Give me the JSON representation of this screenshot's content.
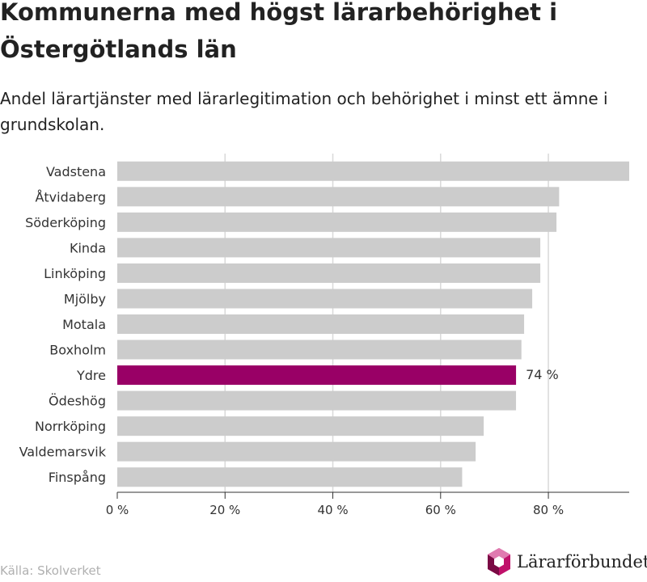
{
  "header": {
    "title": "Kommunerna med högst lärarbehörighet i Östergötlands län",
    "subtitle": "Andel lärartjänster med lärarlegitimation och behörighet i minst ett ämne i grundskolan."
  },
  "footer": {
    "source": "Källa: Skolverket",
    "logo_text": "Lärarförbundet",
    "logo_icon": "lararforbundet-logo-icon"
  },
  "colors": {
    "default_bar": "#cccccc",
    "highlight_bar": "#990066",
    "grid": "#d9d9d9",
    "axis": "#333333",
    "logo_magenta": "#c0106a",
    "logo_dark": "#7a0a44",
    "logo_light": "#e07ab0"
  },
  "chart_data": {
    "type": "bar",
    "orientation": "horizontal",
    "categories": [
      "Vadstena",
      "Åtvidaberg",
      "Söderköping",
      "Kinda",
      "Linköping",
      "Mjölby",
      "Motala",
      "Boxholm",
      "Ydre",
      "Ödeshög",
      "Norrköping",
      "Valdemarsvik",
      "Finspång"
    ],
    "values": [
      95,
      82,
      81.5,
      78.5,
      78.5,
      77,
      75.5,
      75,
      74,
      74,
      68,
      66.5,
      64
    ],
    "highlight_index": 8,
    "data_labels": [
      {
        "index": 8,
        "text": "74 %"
      }
    ],
    "xlim": [
      0,
      95
    ],
    "xticks": [
      0,
      20,
      40,
      60,
      80
    ],
    "xtick_labels": [
      "0 %",
      "20 %",
      "40 %",
      "60 %",
      "80 %"
    ],
    "grid": true
  }
}
